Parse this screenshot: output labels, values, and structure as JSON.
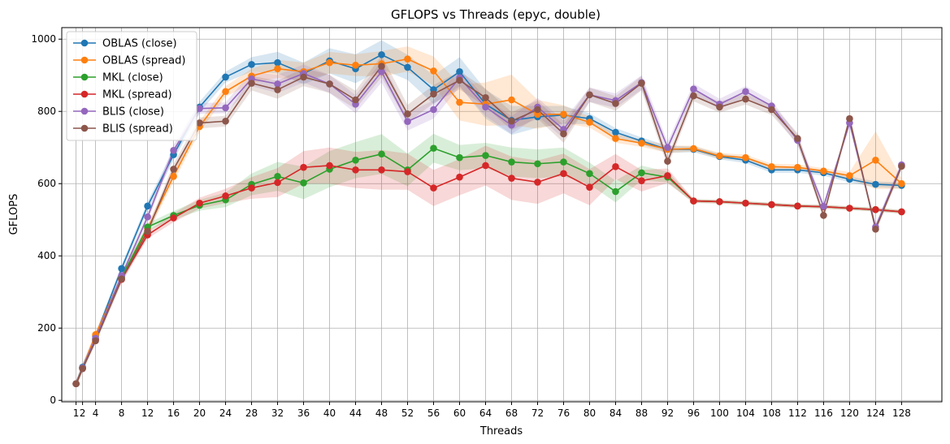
{
  "chart_data": {
    "type": "line",
    "title": "GFLOPS vs Threads (epyc, double)",
    "xlabel": "Threads",
    "ylabel": "GFLOPS",
    "xlim": [
      -1.2,
      134.2
    ],
    "ylim": [
      -4,
      1032
    ],
    "grid": true,
    "legend_position": "top-left",
    "x": [
      1,
      2,
      4,
      8,
      12,
      16,
      20,
      24,
      28,
      32,
      36,
      40,
      44,
      48,
      52,
      56,
      60,
      64,
      68,
      72,
      76,
      80,
      84,
      88,
      92,
      96,
      100,
      104,
      108,
      112,
      116,
      120,
      124,
      128
    ],
    "x_ticks": [
      1,
      2,
      4,
      8,
      12,
      16,
      20,
      24,
      28,
      32,
      36,
      40,
      44,
      48,
      52,
      56,
      60,
      64,
      68,
      72,
      76,
      80,
      84,
      88,
      92,
      96,
      100,
      104,
      108,
      112,
      116,
      120,
      124,
      128
    ],
    "x_tick_labels": [
      "1",
      "2",
      "4",
      "8",
      "12",
      "16",
      "20",
      "24",
      "28",
      "32",
      "36",
      "40",
      "44",
      "48",
      "52",
      "56",
      "60",
      "64",
      "68",
      "72",
      "76",
      "80",
      "84",
      "88",
      "92",
      "96",
      "100",
      "104",
      "108",
      "112",
      "116",
      "120",
      "124",
      "128"
    ],
    "y_ticks": [
      0,
      200,
      400,
      600,
      800,
      1000
    ],
    "y_tick_labels": [
      "0",
      "200",
      "400",
      "600",
      "800",
      "1000"
    ],
    "series": [
      {
        "name": "OBLAS (close)",
        "color": "#1f77b4",
        "values": [
          46,
          92,
          178,
          365,
          538,
          680,
          812,
          895,
          930,
          935,
          905,
          940,
          918,
          957,
          922,
          860,
          910,
          820,
          775,
          785,
          790,
          780,
          742,
          718,
          695,
          695,
          675,
          665,
          638,
          638,
          630,
          612,
          598,
          595
        ],
        "band": [
          10,
          10,
          8,
          10,
          12,
          15,
          15,
          15,
          20,
          30,
          30,
          35,
          40,
          40,
          35,
          40,
          40,
          40,
          40,
          30,
          25,
          15,
          12,
          10,
          10,
          8,
          8,
          8,
          8,
          8,
          8,
          8,
          8,
          8
        ]
      },
      {
        "name": "OBLAS (spread)",
        "color": "#ff7f0e",
        "values": [
          46,
          90,
          182,
          342,
          475,
          620,
          758,
          855,
          898,
          918,
          910,
          935,
          928,
          932,
          945,
          912,
          825,
          820,
          832,
          792,
          792,
          770,
          725,
          712,
          695,
          697,
          677,
          672,
          647,
          645,
          635,
          622,
          665,
          600
        ],
        "band": [
          10,
          10,
          8,
          10,
          12,
          15,
          15,
          15,
          20,
          25,
          25,
          30,
          30,
          35,
          35,
          40,
          50,
          60,
          70,
          40,
          25,
          15,
          12,
          10,
          10,
          8,
          8,
          8,
          8,
          8,
          8,
          10,
          80,
          15
        ]
      },
      {
        "name": "MKL (close)",
        "color": "#2ca02c",
        "values": [
          46,
          90,
          170,
          340,
          480,
          512,
          540,
          555,
          598,
          620,
          602,
          640,
          665,
          682,
          638,
          698,
          672,
          678,
          660,
          655,
          660,
          628,
          578,
          630,
          618,
          552,
          550,
          546,
          542,
          538,
          536,
          532,
          528,
          522
        ],
        "band": [
          8,
          8,
          8,
          10,
          10,
          12,
          15,
          20,
          30,
          40,
          45,
          50,
          50,
          55,
          45,
          40,
          35,
          35,
          40,
          40,
          40,
          30,
          30,
          20,
          15,
          5,
          5,
          5,
          5,
          5,
          5,
          5,
          5,
          5
        ]
      },
      {
        "name": "MKL (spread)",
        "color": "#d62728",
        "values": [
          46,
          88,
          168,
          335,
          458,
          505,
          546,
          566,
          588,
          603,
          645,
          650,
          638,
          638,
          633,
          588,
          618,
          650,
          615,
          604,
          628,
          590,
          647,
          608,
          622,
          552,
          550,
          546,
          542,
          538,
          536,
          532,
          528,
          522
        ],
        "band": [
          8,
          8,
          8,
          10,
          10,
          12,
          15,
          20,
          30,
          40,
          45,
          50,
          50,
          55,
          50,
          50,
          50,
          55,
          60,
          60,
          55,
          50,
          35,
          30,
          20,
          5,
          5,
          5,
          5,
          5,
          5,
          5,
          5,
          5
        ]
      },
      {
        "name": "BLIS (close)",
        "color": "#9467bd",
        "values": [
          46,
          90,
          172,
          345,
          508,
          692,
          808,
          810,
          890,
          876,
          905,
          876,
          820,
          910,
          772,
          805,
          893,
          812,
          762,
          812,
          750,
          846,
          830,
          880,
          700,
          862,
          820,
          855,
          815,
          720,
          537,
          768,
          480,
          652
        ],
        "band": [
          8,
          8,
          8,
          10,
          12,
          15,
          15,
          15,
          20,
          25,
          25,
          25,
          25,
          30,
          25,
          25,
          25,
          25,
          25,
          25,
          25,
          20,
          20,
          20,
          15,
          15,
          15,
          15,
          15,
          15,
          10,
          10,
          10,
          10
        ]
      },
      {
        "name": "BLIS (spread)",
        "color": "#8c564b",
        "values": [
          46,
          88,
          165,
          336,
          468,
          640,
          768,
          773,
          878,
          860,
          895,
          876,
          832,
          925,
          793,
          848,
          886,
          838,
          773,
          805,
          738,
          846,
          822,
          878,
          662,
          843,
          812,
          834,
          805,
          725,
          512,
          780,
          474,
          648
        ],
        "band": [
          8,
          8,
          8,
          10,
          12,
          15,
          15,
          15,
          20,
          25,
          25,
          25,
          25,
          30,
          25,
          25,
          25,
          25,
          25,
          25,
          25,
          20,
          20,
          20,
          15,
          15,
          15,
          15,
          15,
          15,
          10,
          10,
          10,
          10
        ]
      }
    ]
  }
}
